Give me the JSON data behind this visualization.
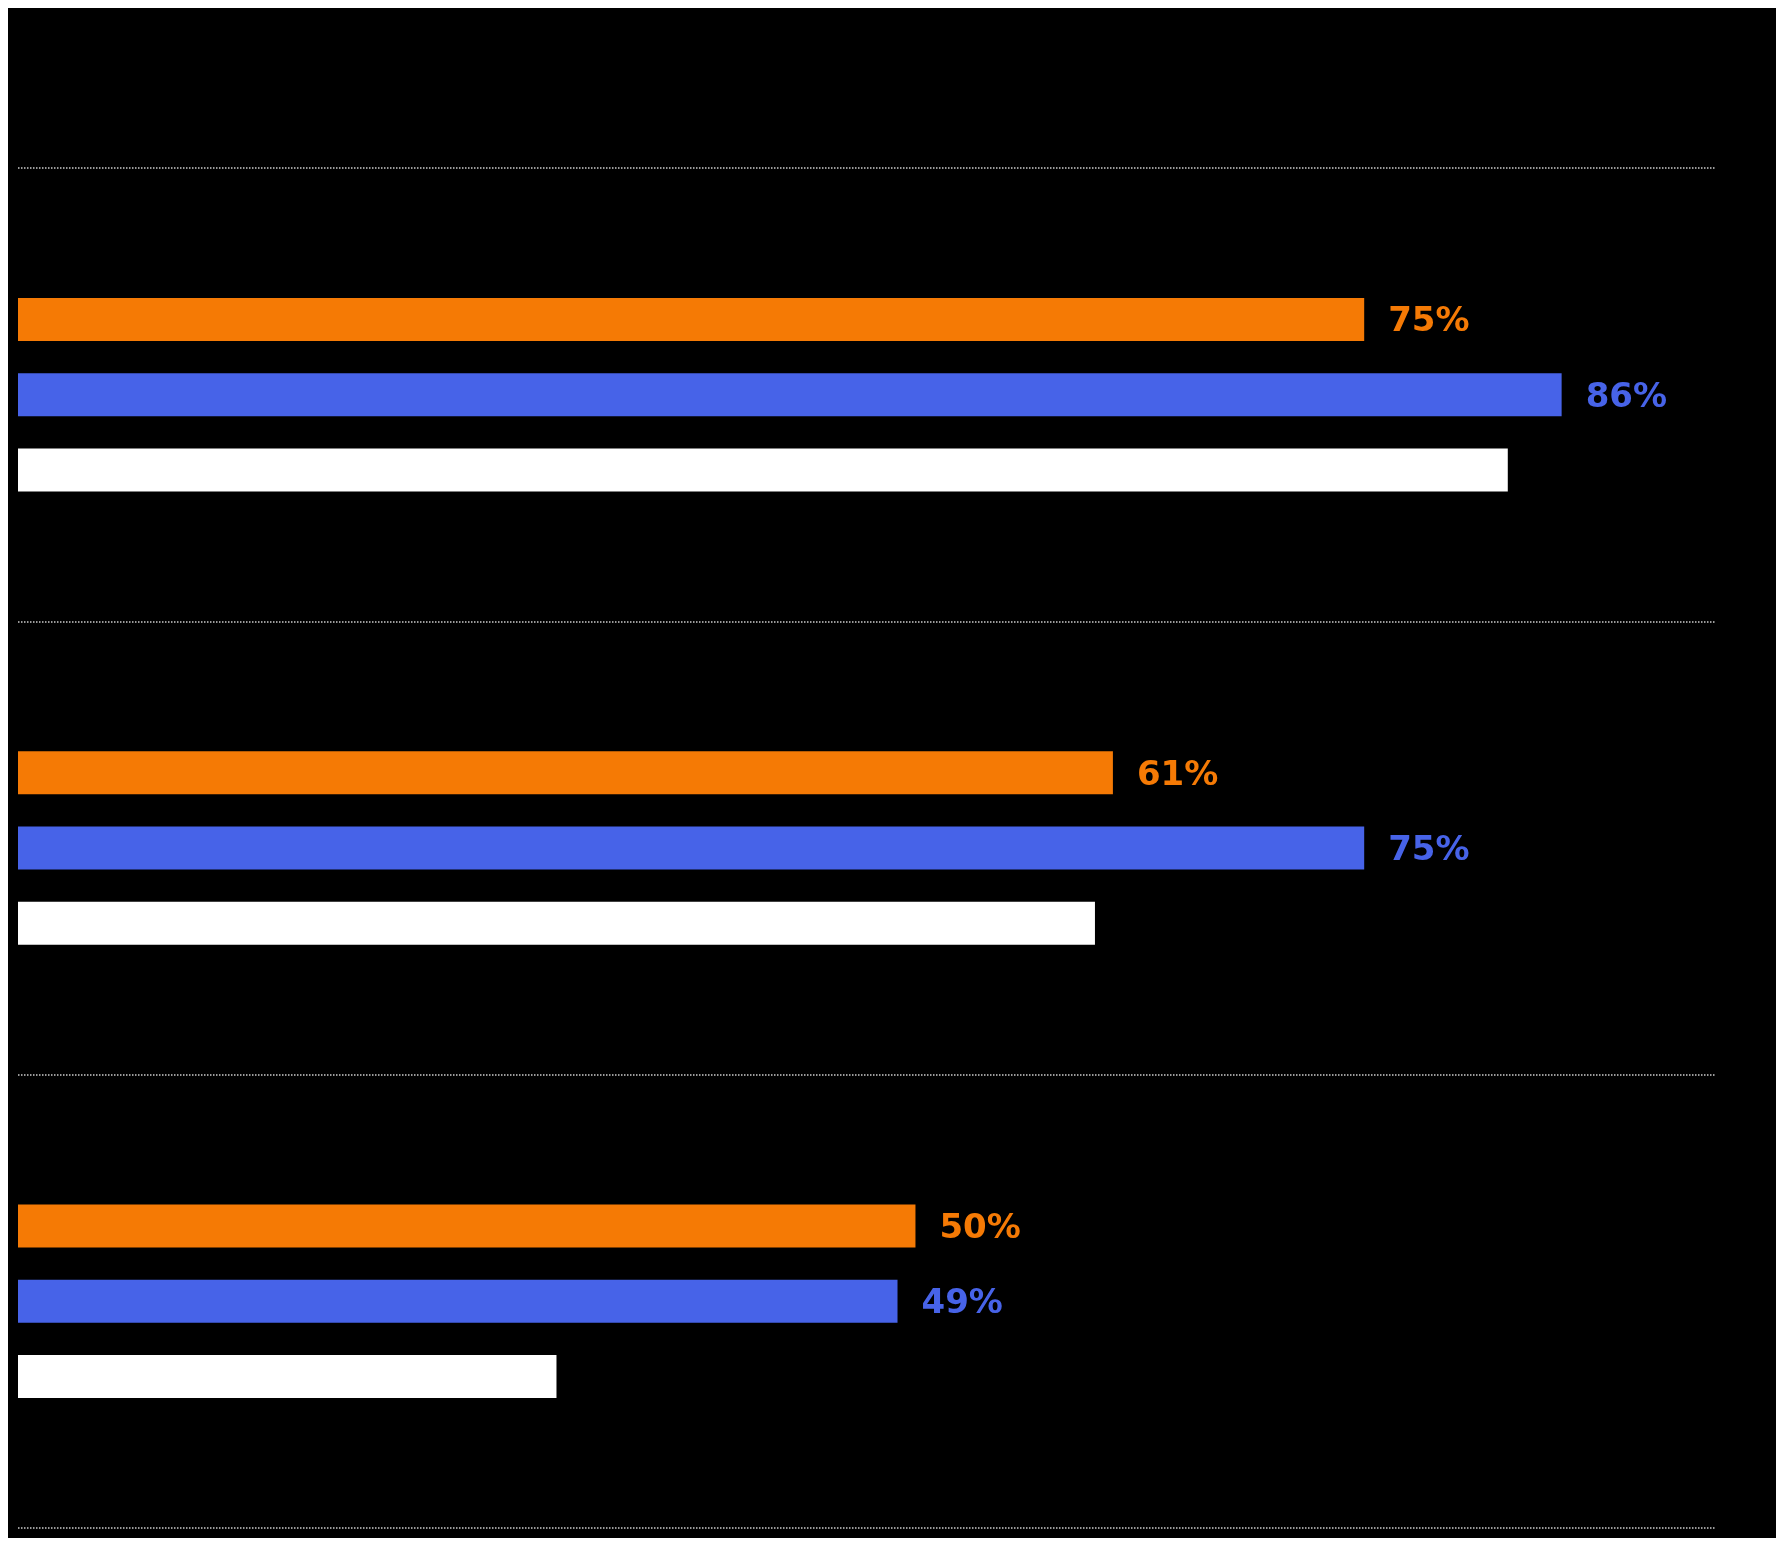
{
  "chart_data": {
    "type": "bar",
    "orientation": "horizontal",
    "categories": [
      null,
      null,
      null
    ],
    "grid": "y",
    "series": [
      {
        "color": "#f57a05",
        "values": [
          75,
          61,
          50
        ],
        "value_labels": [
          "75%",
          "61%",
          "50%"
        ]
      },
      {
        "color": "#4763e8",
        "values": [
          86,
          75,
          49
        ],
        "value_labels": [
          "86%",
          "75%",
          "49%"
        ]
      },
      {
        "color": "#ffffff",
        "values": [
          83,
          60,
          30
        ],
        "value_labels": [
          null,
          null,
          null
        ]
      }
    ]
  }
}
